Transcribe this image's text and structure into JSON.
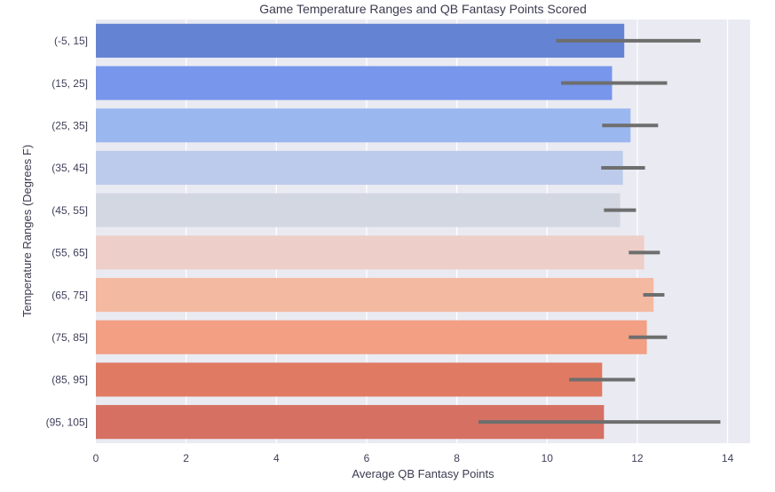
{
  "chart_data": {
    "type": "bar",
    "orientation": "horizontal",
    "title": "Game Temperature Ranges and QB Fantasy Points Scored",
    "xlabel": "Average QB Fantasy Points",
    "ylabel": "Temperature Ranges (Degrees F)",
    "categories": [
      "(-5, 15]",
      "(15, 25]",
      "(25, 35]",
      "(35, 45]",
      "(45, 55]",
      "(55, 65]",
      "(65, 75]",
      "(75, 85]",
      "(85, 95]",
      "(95, 105]"
    ],
    "values": [
      11.71,
      11.44,
      11.85,
      11.68,
      11.62,
      12.15,
      12.36,
      12.21,
      11.22,
      11.26
    ],
    "error_low": [
      10.2,
      10.31,
      11.22,
      11.2,
      11.26,
      11.81,
      12.13,
      11.81,
      10.49,
      8.48
    ],
    "error_high": [
      13.4,
      12.66,
      12.46,
      12.17,
      11.97,
      12.5,
      12.6,
      12.66,
      11.95,
      13.84
    ],
    "xlim": [
      0,
      14.5
    ],
    "xticks": [
      0,
      2,
      4,
      6,
      8,
      10,
      12,
      14
    ],
    "grid": true,
    "colors": [
      "#6483d2",
      "#7896ec",
      "#9bb7f0",
      "#bccbeb",
      "#d3d7e2",
      "#eecec8",
      "#f4b9a1",
      "#f29f84",
      "#e07a63",
      "#d57063"
    ],
    "background_color": "#eaeaf2",
    "grid_color": "#ffffff",
    "error_color": "#6e6e6e"
  }
}
